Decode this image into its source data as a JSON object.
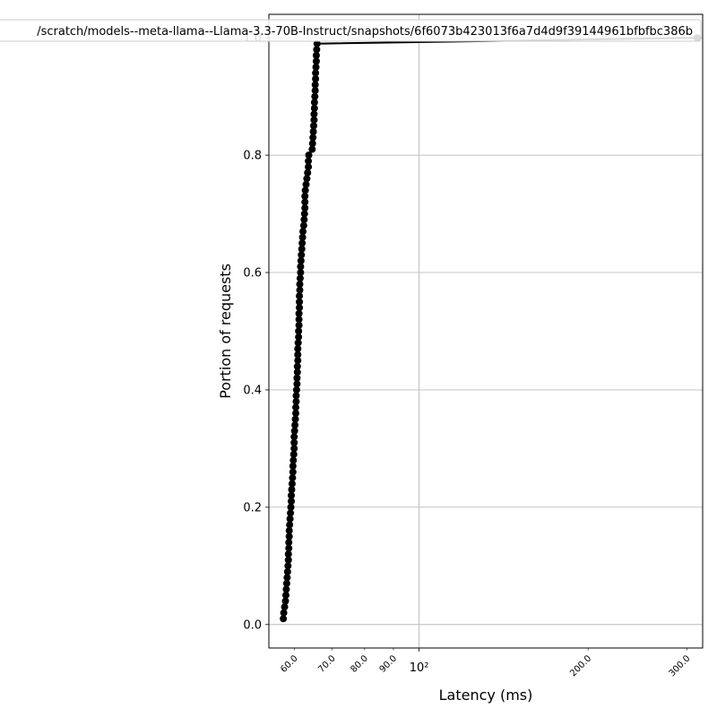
{
  "chart_data": {
    "type": "line",
    "title": "",
    "xlabel": "Latency (ms)",
    "ylabel": "Portion of requests",
    "xscale": "log",
    "xlim": [
      54.0,
      320.0
    ],
    "ylim": [
      -0.04,
      1.04
    ],
    "grid": true,
    "legend_position": "top",
    "x_major_ticks": [
      {
        "value": 100,
        "label": "10²"
      }
    ],
    "x_minor_ticks": [
      {
        "value": 60,
        "label": "60.0"
      },
      {
        "value": 70,
        "label": "70.0"
      },
      {
        "value": 80,
        "label": "80.0"
      },
      {
        "value": 90,
        "label": "90.0"
      },
      {
        "value": 200,
        "label": "200.0"
      },
      {
        "value": 300,
        "label": "300.0"
      }
    ],
    "y_ticks": [
      {
        "value": 0.0,
        "label": "0.0"
      },
      {
        "value": 0.2,
        "label": "0.2"
      },
      {
        "value": 0.4,
        "label": "0.4"
      },
      {
        "value": 0.6,
        "label": "0.6"
      },
      {
        "value": 0.8,
        "label": "0.8"
      },
      {
        "value": 1.0,
        "label": "1.0"
      }
    ],
    "series": [
      {
        "name": "/scratch/models--meta-llama--Llama-3.3-70B-Instruct/snapshots/6f6073b423013f6a7d4d9f39144961bfbfbc386b",
        "color": "#000000",
        "points": [
          [
            57.3,
            0.01
          ],
          [
            57.4,
            0.02
          ],
          [
            57.6,
            0.03
          ],
          [
            57.8,
            0.04
          ],
          [
            57.9,
            0.05
          ],
          [
            58.0,
            0.06
          ],
          [
            58.1,
            0.07
          ],
          [
            58.2,
            0.08
          ],
          [
            58.3,
            0.09
          ],
          [
            58.4,
            0.1
          ],
          [
            58.5,
            0.11
          ],
          [
            58.5,
            0.12
          ],
          [
            58.6,
            0.13
          ],
          [
            58.6,
            0.14
          ],
          [
            58.7,
            0.15
          ],
          [
            58.7,
            0.16
          ],
          [
            58.8,
            0.17
          ],
          [
            58.9,
            0.18
          ],
          [
            59.0,
            0.19
          ],
          [
            59.1,
            0.2
          ],
          [
            59.2,
            0.21
          ],
          [
            59.2,
            0.22
          ],
          [
            59.3,
            0.23
          ],
          [
            59.4,
            0.24
          ],
          [
            59.5,
            0.25
          ],
          [
            59.6,
            0.26
          ],
          [
            59.6,
            0.27
          ],
          [
            59.7,
            0.28
          ],
          [
            59.8,
            0.29
          ],
          [
            59.9,
            0.3
          ],
          [
            59.9,
            0.31
          ],
          [
            59.9,
            0.32
          ],
          [
            60.0,
            0.33
          ],
          [
            60.1,
            0.34
          ],
          [
            60.2,
            0.35
          ],
          [
            60.3,
            0.36
          ],
          [
            60.3,
            0.37
          ],
          [
            60.4,
            0.38
          ],
          [
            60.4,
            0.39
          ],
          [
            60.5,
            0.4
          ],
          [
            60.6,
            0.41
          ],
          [
            60.6,
            0.42
          ],
          [
            60.7,
            0.43
          ],
          [
            60.7,
            0.44
          ],
          [
            60.8,
            0.45
          ],
          [
            60.8,
            0.46
          ],
          [
            60.8,
            0.47
          ],
          [
            60.9,
            0.48
          ],
          [
            61.0,
            0.49
          ],
          [
            61.0,
            0.5
          ],
          [
            61.1,
            0.51
          ],
          [
            61.1,
            0.52
          ],
          [
            61.1,
            0.53
          ],
          [
            61.2,
            0.54
          ],
          [
            61.2,
            0.55
          ],
          [
            61.2,
            0.56
          ],
          [
            61.3,
            0.57
          ],
          [
            61.3,
            0.58
          ],
          [
            61.4,
            0.59
          ],
          [
            61.5,
            0.6
          ],
          [
            61.5,
            0.61
          ],
          [
            61.6,
            0.62
          ],
          [
            61.7,
            0.63
          ],
          [
            61.8,
            0.64
          ],
          [
            61.9,
            0.65
          ],
          [
            62.0,
            0.66
          ],
          [
            62.1,
            0.67
          ],
          [
            62.3,
            0.68
          ],
          [
            62.4,
            0.69
          ],
          [
            62.5,
            0.7
          ],
          [
            62.6,
            0.71
          ],
          [
            62.6,
            0.72
          ],
          [
            62.6,
            0.73
          ],
          [
            62.7,
            0.74
          ],
          [
            62.9,
            0.75
          ],
          [
            63.1,
            0.76
          ],
          [
            63.3,
            0.77
          ],
          [
            63.5,
            0.78
          ],
          [
            63.5,
            0.79
          ],
          [
            63.6,
            0.8
          ],
          [
            64.5,
            0.81
          ],
          [
            64.6,
            0.82
          ],
          [
            64.7,
            0.83
          ],
          [
            64.8,
            0.84
          ],
          [
            64.9,
            0.85
          ],
          [
            65.0,
            0.86
          ],
          [
            65.0,
            0.87
          ],
          [
            65.1,
            0.88
          ],
          [
            65.1,
            0.89
          ],
          [
            65.2,
            0.9
          ],
          [
            65.3,
            0.91
          ],
          [
            65.3,
            0.92
          ],
          [
            65.4,
            0.93
          ],
          [
            65.4,
            0.94
          ],
          [
            65.5,
            0.95
          ],
          [
            65.6,
            0.96
          ],
          [
            65.6,
            0.97
          ],
          [
            65.7,
            0.98
          ],
          [
            65.8,
            0.99
          ],
          [
            313.0,
            1.0
          ]
        ]
      }
    ]
  }
}
